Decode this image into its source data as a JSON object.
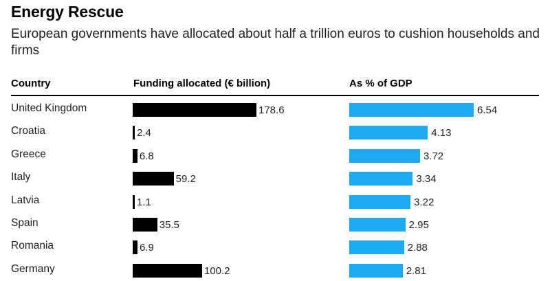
{
  "chart_data": {
    "type": "bar",
    "title": "Energy Rescue",
    "subtitle": "European governments have allocated about half a trillion euros to cushion households and firms",
    "columns": {
      "country": "Country",
      "funding": "Funding allocated (€ billion)",
      "gdp": "As % of GDP"
    },
    "colors": {
      "funding": "#000000",
      "gdp": "#1eaaf1"
    },
    "categories": [
      "United Kingdom",
      "Croatia",
      "Greece",
      "Italy",
      "Latvia",
      "Spain",
      "Romania",
      "Germany"
    ],
    "series": [
      {
        "name": "Funding allocated (€ billion)",
        "values": [
          178.6,
          2.4,
          6.8,
          59.2,
          1.1,
          35.5,
          6.9,
          100.2
        ],
        "labels": [
          "178.6",
          "2.4",
          "6.8",
          "59.2",
          "1.1",
          "35.5",
          "6.9",
          "100.2"
        ]
      },
      {
        "name": "As % of GDP",
        "values": [
          6.54,
          4.13,
          3.72,
          3.34,
          3.22,
          2.95,
          2.88,
          2.81
        ],
        "labels": [
          "6.54",
          "4.13",
          "3.72",
          "3.34",
          "3.22",
          "2.95",
          "2.88",
          "2.81"
        ]
      }
    ]
  }
}
